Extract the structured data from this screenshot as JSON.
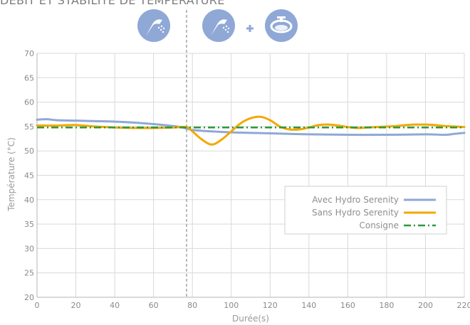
{
  "header": {
    "title": "DÉBIT ET STABILITÉ DE TEMPÉRATURE"
  },
  "icons": {
    "left": [
      "shower-head-icon"
    ],
    "right": [
      "shower-head-icon",
      "plus-icon",
      "washbasin-icon"
    ],
    "circle_color": "#8fa8d6",
    "plus_color": "#8fa8d6"
  },
  "chart_data": {
    "type": "line",
    "xlabel": "Durée(s)",
    "ylabel": "Température (°C)",
    "xlim": [
      0,
      220
    ],
    "ylim": [
      20,
      70
    ],
    "x_ticks": [
      "0",
      "20",
      "40",
      "60",
      "80",
      "100",
      "120",
      "140",
      "160",
      "180",
      "200",
      "220"
    ],
    "y_ticks": [
      "20",
      "25",
      "30",
      "35",
      "40",
      "45",
      "50",
      "55",
      "60",
      "65",
      "70"
    ],
    "grid": true,
    "event_marker_x": 77,
    "legend_position": "center-right",
    "series": [
      {
        "name": "Avec Hydro Serenity",
        "color": "#8fa8d6",
        "style": "solid",
        "x": [
          0,
          5,
          10,
          20,
          30,
          40,
          50,
          60,
          70,
          75,
          80,
          90,
          100,
          110,
          120,
          140,
          160,
          180,
          200,
          210,
          215,
          220
        ],
        "y": [
          56.4,
          56.5,
          56.3,
          56.2,
          56.1,
          56.0,
          55.8,
          55.5,
          55.1,
          54.8,
          54.3,
          54.0,
          53.8,
          53.7,
          53.6,
          53.4,
          53.3,
          53.3,
          53.4,
          53.3,
          53.5,
          53.7
        ]
      },
      {
        "name": "Sans Hydro Serenity",
        "color": "#f2a900",
        "style": "solid",
        "x": [
          0,
          10,
          20,
          30,
          40,
          50,
          60,
          70,
          77,
          80,
          85,
          90,
          95,
          100,
          105,
          110,
          115,
          120,
          125,
          130,
          135,
          140,
          145,
          150,
          155,
          160,
          165,
          170,
          175,
          180,
          185,
          190,
          195,
          200,
          205,
          210,
          215,
          220
        ],
        "y": [
          55.2,
          55.2,
          55.3,
          55.0,
          54.8,
          54.7,
          54.7,
          54.8,
          54.9,
          54.0,
          52.3,
          51.3,
          52.3,
          54.0,
          55.7,
          56.7,
          57.0,
          56.3,
          55.0,
          54.4,
          54.4,
          54.8,
          55.3,
          55.4,
          55.2,
          54.9,
          54.7,
          54.8,
          54.9,
          55.0,
          55.1,
          55.3,
          55.4,
          55.4,
          55.3,
          55.1,
          55.0,
          54.9
        ]
      },
      {
        "name": "Consigne",
        "color": "#2c9a3c",
        "style": "dash-dot",
        "x": [
          0,
          220
        ],
        "y": [
          54.8,
          54.8
        ]
      }
    ]
  }
}
